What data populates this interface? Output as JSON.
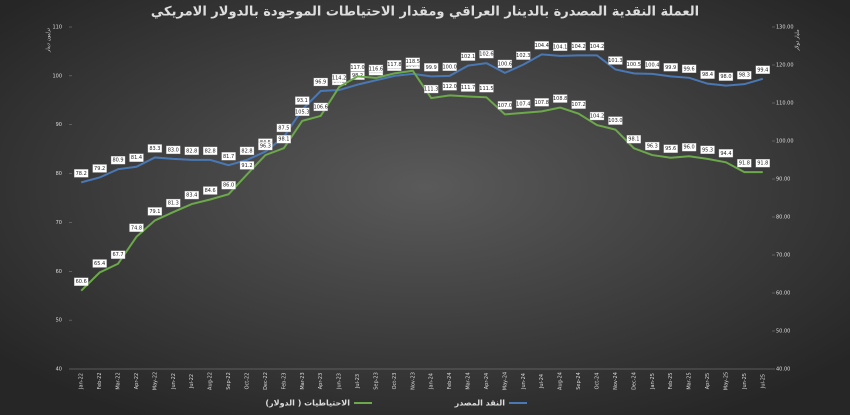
{
  "chart_data": {
    "type": "line",
    "title": "العملة النقدية المصدرة بالدينار العراقي  ومقدار الاحتياطات الموجودة بالدولار الامريكي",
    "y_label": "ترليون دينار",
    "y2_label": "مليار دولار",
    "categories": [
      "Jan-22",
      "Feb-22",
      "Mar-22",
      "Apr-22",
      "May-22",
      "Jun-22",
      "Jul-22",
      "Aug-22",
      "Sep-22",
      "Oct-22",
      "Dec-22",
      "Feb-23",
      "Mar-23",
      "Apr-23",
      "Jun-23",
      "Jul-23",
      "Sep-23",
      "Oct-23",
      "Nov-23",
      "Jan-24",
      "Feb-24",
      "Mar-24",
      "Apr-24",
      "May-24",
      "Jun-24",
      "Jul-24",
      "Aug-24",
      "Sep-24",
      "Oct-24",
      "Nov-24",
      "Dec-24",
      "Jan-25",
      "Feb-25",
      "Mar-25",
      "Apr-25",
      "May-25",
      "Jun-25",
      "Jul-25"
    ],
    "series": [
      {
        "name": "النقد المصدر",
        "color": "#4a78b5",
        "axis": "y",
        "values": [
          78.2,
          79.2,
          80.9,
          81.4,
          83.3,
          83.0,
          82.8,
          82.8,
          81.7,
          82.8,
          84.5,
          87.5,
          93.1,
          96.9,
          97.1,
          98.2,
          99.1,
          100.0,
          100.4,
          99.9,
          100.0,
          102.1,
          102.6,
          100.6,
          102.3,
          104.4,
          104.1,
          104.2,
          104.2,
          101.3,
          100.5,
          100.4,
          99.9,
          99.6,
          98.4,
          98.0,
          98.3,
          99.4
        ],
        "value_labels": [
          "78.2",
          "79.2",
          "80.9",
          "81.4",
          "83.3",
          "83.0",
          "82.8",
          "82.8",
          "81.7",
          "82.8",
          "84.5",
          "87.5",
          "93.1",
          "96.9",
          "97.1",
          "98.2",
          "99.1",
          "100.0",
          "100.4",
          "99.9",
          "100.0",
          "102.1",
          "102.6",
          "100.6",
          "102.3",
          "104.4",
          "104.1",
          "104.2",
          "104.2",
          "101.3",
          "100.5",
          "100.4",
          "99.9",
          "99.6",
          "98.4",
          "98.0",
          "98.3",
          "99.4"
        ]
      },
      {
        "name": "الاحتياطيات ( الدولار)",
        "color": "#6ca94a",
        "axis": "y2",
        "values": [
          60.6,
          65.4,
          67.7,
          74.8,
          79.1,
          81.3,
          83.4,
          84.6,
          86.0,
          91.2,
          96.3,
          98.1,
          105.3,
          106.6,
          114.2,
          117.0,
          116.6,
          117.8,
          118.5,
          111.3,
          112.0,
          111.7,
          111.5,
          107.0,
          107.4,
          107.8,
          108.8,
          107.2,
          104.2,
          103.0,
          98.1,
          96.3,
          95.6,
          96.0,
          95.3,
          94.4,
          91.8,
          91.8
        ],
        "value_labels": [
          "60.6",
          "65.4",
          "67.7",
          "74.8",
          "79.1",
          "81.3",
          "83.4",
          "84.6",
          "86.0",
          "91.2",
          "96.3",
          "98.1",
          "105.3",
          "106.6",
          "114.2",
          "117.0",
          "116.6",
          "117.8",
          "118.5",
          "111.3",
          "112.0",
          "111.7",
          "111.5",
          "107.0",
          "107.4",
          "107.8",
          "108.8",
          "107.2",
          "104.2",
          "103.0",
          "98.1",
          "96.3",
          "95.6",
          "96.0",
          "95.3",
          "94.4",
          "91.8",
          "91.8"
        ]
      }
    ],
    "ylim": [
      40,
      110
    ],
    "yticks": [
      40,
      50,
      60,
      70,
      80,
      90,
      100,
      110
    ],
    "y2lim": [
      40,
      130
    ],
    "y2ticks": [
      {
        "value": 40,
        "label": "40.00"
      },
      {
        "value": 50,
        "label": "50.00"
      },
      {
        "value": 60,
        "label": "60.00"
      },
      {
        "value": 70,
        "label": "70.00"
      },
      {
        "value": 80,
        "label": "80.00"
      },
      {
        "value": 90,
        "label": "90.00"
      },
      {
        "value": 100,
        "label": "100.00"
      },
      {
        "value": 110,
        "label": "110.00"
      },
      {
        "value": 120,
        "label": "120.00"
      },
      {
        "value": 130,
        "label": "130.00"
      }
    ],
    "legend": "bottom"
  }
}
